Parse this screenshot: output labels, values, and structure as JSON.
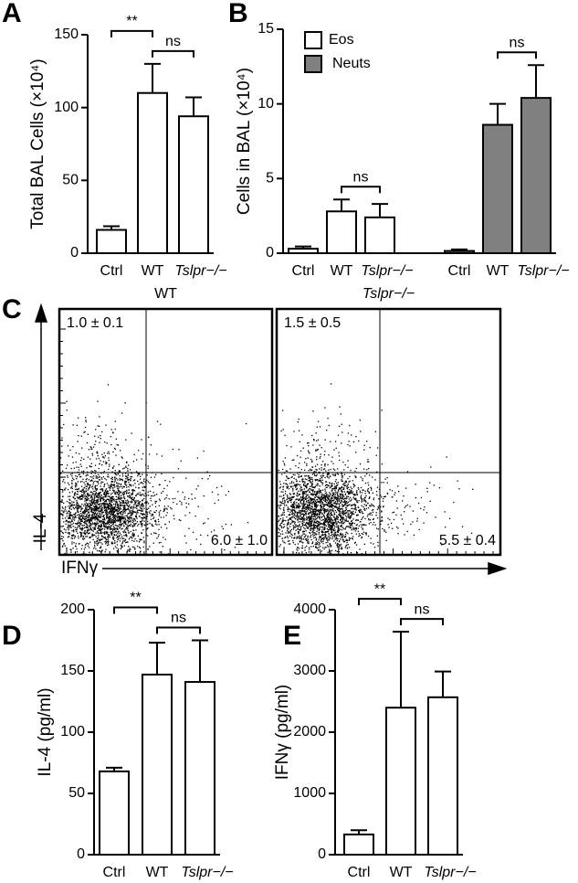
{
  "chart_data": [
    {
      "panel": "A",
      "type": "bar",
      "ylabel": "Total BAL Cells (×10⁴)",
      "categories": [
        "Ctrl",
        "WT",
        "Tslpr−/−"
      ],
      "series": [
        {
          "name": "Total",
          "color": "#ffffff",
          "values": [
            16,
            110,
            94
          ],
          "errors": [
            2.5,
            20,
            13
          ]
        }
      ],
      "ylim": [
        0,
        150
      ],
      "yticks": [
        0,
        50,
        100,
        150
      ],
      "annotations": [
        {
          "text": "ns",
          "between": [
            1,
            2
          ]
        },
        {
          "text": "**",
          "between": [
            0,
            1
          ]
        }
      ]
    },
    {
      "panel": "B",
      "type": "bar",
      "ylabel": "Cells in BAL (×10⁴)",
      "categories": [
        "Ctrl",
        "WT",
        "Tslpr−/−",
        "Ctrl",
        "WT",
        "Tslpr−/−"
      ],
      "series": [
        {
          "name": "Eos",
          "color": "#ffffff",
          "values": [
            0.3,
            2.8,
            2.4,
            null,
            null,
            null
          ],
          "errors": [
            0.15,
            0.8,
            0.9,
            null,
            null,
            null
          ]
        },
        {
          "name": "Neuts",
          "color": "#808080",
          "values": [
            null,
            null,
            null,
            0.15,
            8.6,
            10.4
          ],
          "errors": [
            null,
            null,
            null,
            0.1,
            1.4,
            2.2
          ]
        }
      ],
      "ylim": [
        0,
        15
      ],
      "yticks": [
        0,
        5,
        10,
        15
      ],
      "legend": "top-left",
      "annotations": [
        {
          "text": "ns",
          "between": [
            1,
            2
          ]
        },
        {
          "text": "ns",
          "between": [
            4,
            5
          ]
        }
      ]
    },
    {
      "panel": "C",
      "type": "flow",
      "xlabel": "IFNγ",
      "ylabel": "IL-4",
      "plots": [
        {
          "title": "WT",
          "upper_left": "1.0 ± 0.1",
          "lower_right": "6.0 ± 1.0"
        },
        {
          "title": "Tslpr−/−",
          "upper_left": "1.5 ± 0.5",
          "lower_right": "5.5 ± 0.4"
        }
      ]
    },
    {
      "panel": "D",
      "type": "bar",
      "ylabel": "IL-4 (pg/ml)",
      "categories": [
        "Ctrl",
        "WT",
        "Tslpr−/−"
      ],
      "series": [
        {
          "name": "IL-4",
          "color": "#ffffff",
          "values": [
            68,
            147,
            141
          ],
          "errors": [
            3,
            26,
            34
          ]
        }
      ],
      "ylim": [
        0,
        200
      ],
      "yticks": [
        0,
        50,
        100,
        150,
        200
      ],
      "annotations": [
        {
          "text": "ns",
          "between": [
            1,
            2
          ]
        },
        {
          "text": "**",
          "between": [
            0,
            1
          ]
        }
      ]
    },
    {
      "panel": "E",
      "type": "bar",
      "ylabel": "IFNγ (pg/ml)",
      "categories": [
        "Ctrl",
        "WT",
        "Tslpr−/−"
      ],
      "series": [
        {
          "name": "IFNγ",
          "color": "#ffffff",
          "values": [
            330,
            2400,
            2570
          ],
          "errors": [
            70,
            1240,
            420
          ]
        }
      ],
      "ylim": [
        0,
        4000
      ],
      "yticks": [
        0,
        1000,
        2000,
        3000,
        4000
      ],
      "annotations": [
        {
          "text": "ns",
          "between": [
            1,
            2
          ]
        },
        {
          "text": "**",
          "between": [
            0,
            1
          ]
        }
      ]
    }
  ]
}
